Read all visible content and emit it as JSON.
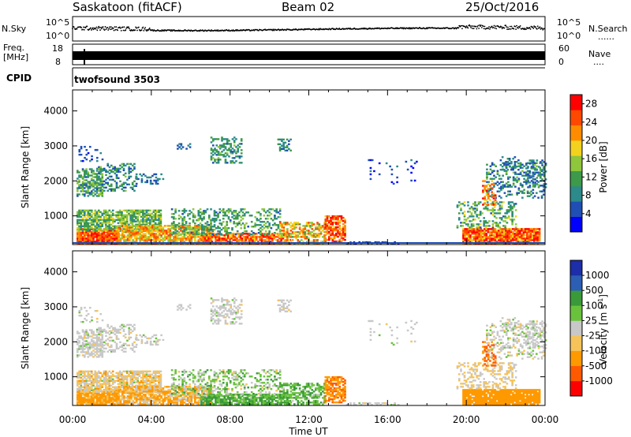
{
  "header": {
    "station_title": "Saskatoon (fitACF)",
    "beam": "Beam 02",
    "date": "25/Oct/2016"
  },
  "top_strips": {
    "nsky_label": "N.Sky",
    "nsearch_label": "N.Search",
    "nsearch_marker": "......",
    "freq_label_line1": "Freq.",
    "freq_label_line2": "[MHz]",
    "nave_label": "Nave",
    "nave_marker": "....",
    "cpid_label": "CPID",
    "cpid_value": "twofsound 3503",
    "noise_ticks_left": [
      "10^5",
      "10^0"
    ],
    "noise_ticks_right": [
      "10^5",
      "10^0"
    ],
    "freq_ticks": [
      "18",
      "8"
    ],
    "nave_ticks": [
      "60",
      "0"
    ]
  },
  "colors": {
    "power_scale": [
      "#0000ff",
      "#1f4fb4",
      "#2c8a8a",
      "#3c9a4a",
      "#8ec63c",
      "#f2d21e",
      "#ff8c00",
      "#ff4800",
      "#ff0000"
    ],
    "velocity_scale": [
      "#ff0000",
      "#ff5a00",
      "#ff9900",
      "#f5c35a",
      "#c8c8c8",
      "#6ac23c",
      "#3a9a3a",
      "#2c5fb4",
      "#1c2ea8"
    ]
  },
  "chart_data": [
    {
      "type": "heatmap",
      "name": "power",
      "ylabel": "Slant Range [km]",
      "y_ticks": [
        "1000",
        "2000",
        "3000",
        "4000"
      ],
      "y_tick_values": [
        1000,
        2000,
        3000,
        4000
      ],
      "ylim": [
        180,
        4600
      ],
      "xlim_hours": [
        0,
        24
      ],
      "x_ticks": [
        "00:00",
        "04:00",
        "08:00",
        "12:00",
        "16:00",
        "20:00",
        "00:00"
      ],
      "xlabel": "Time UT",
      "colorbar": {
        "label": "Power [dB]",
        "ticks": [
          "4",
          "8",
          "12",
          "16",
          "20",
          "24",
          "28"
        ],
        "tick_values": [
          4,
          8,
          12,
          16,
          20,
          24,
          28
        ],
        "range": [
          0,
          30
        ]
      }
    },
    {
      "type": "heatmap",
      "name": "velocity",
      "ylabel": "Slant Range [km]",
      "y_ticks": [
        "1000",
        "2000",
        "3000",
        "4000"
      ],
      "y_tick_values": [
        1000,
        2000,
        3000,
        4000
      ],
      "ylim": [
        180,
        4600
      ],
      "xlim_hours": [
        0,
        24
      ],
      "x_ticks": [
        "00:00",
        "04:00",
        "08:00",
        "12:00",
        "16:00",
        "20:00",
        "00:00"
      ],
      "xlabel": "Time UT",
      "colorbar": {
        "label": "Velocity [m s^-1]",
        "ticks": [
          "-1000",
          "-500",
          "-100",
          "-25",
          "25",
          "100",
          "500",
          "1000"
        ],
        "bands": 9
      }
    }
  ]
}
